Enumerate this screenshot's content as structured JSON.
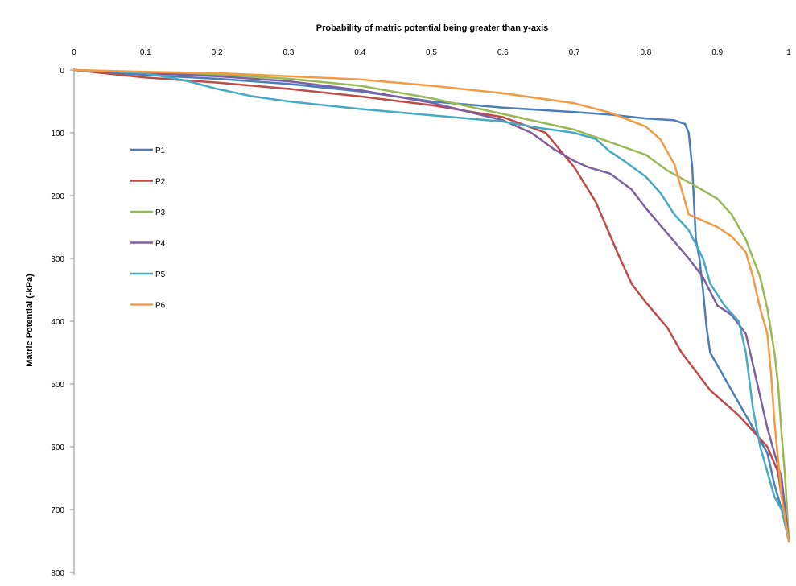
{
  "chart_data": {
    "type": "line",
    "title": "",
    "xlabel": "Probability of matric potential being greater than y-axis",
    "ylabel": "Matric Potential (-kPa)",
    "x_axis_position": "top",
    "y_axis_inverted": true,
    "xlim": [
      0,
      1
    ],
    "ylim": [
      0,
      800
    ],
    "x_ticks": [
      "0",
      "0.1",
      "0.2",
      "0.3",
      "0.4",
      "0.5",
      "0.6",
      "0.7",
      "0.8",
      "0.9",
      "1"
    ],
    "y_ticks": [
      "0",
      "100",
      "200",
      "300",
      "400",
      "500",
      "600",
      "700",
      "800"
    ],
    "grid": false,
    "legend_position": "left",
    "series": [
      {
        "name": "P1",
        "color": "#4a7ebb",
        "points": [
          [
            0,
            0
          ],
          [
            0.1,
            8
          ],
          [
            0.2,
            14
          ],
          [
            0.3,
            22
          ],
          [
            0.4,
            34
          ],
          [
            0.5,
            50
          ],
          [
            0.6,
            60
          ],
          [
            0.7,
            67
          ],
          [
            0.75,
            71
          ],
          [
            0.8,
            77
          ],
          [
            0.84,
            80
          ],
          [
            0.855,
            86
          ],
          [
            0.86,
            100
          ],
          [
            0.865,
            155
          ],
          [
            0.87,
            270
          ],
          [
            0.875,
            300
          ],
          [
            0.88,
            350
          ],
          [
            0.885,
            410
          ],
          [
            0.89,
            450
          ],
          [
            0.91,
            490
          ],
          [
            0.93,
            530
          ],
          [
            0.95,
            570
          ],
          [
            0.97,
            610
          ],
          [
            0.98,
            660
          ],
          [
            0.99,
            700
          ],
          [
            0.995,
            720
          ],
          [
            1,
            750
          ]
        ]
      },
      {
        "name": "P2",
        "color": "#be4b48",
        "points": [
          [
            0,
            0
          ],
          [
            0.1,
            12
          ],
          [
            0.2,
            20
          ],
          [
            0.3,
            30
          ],
          [
            0.4,
            42
          ],
          [
            0.5,
            56
          ],
          [
            0.6,
            75
          ],
          [
            0.66,
            100
          ],
          [
            0.7,
            155
          ],
          [
            0.73,
            210
          ],
          [
            0.76,
            290
          ],
          [
            0.78,
            340
          ],
          [
            0.8,
            370
          ],
          [
            0.83,
            410
          ],
          [
            0.85,
            450
          ],
          [
            0.87,
            480
          ],
          [
            0.89,
            510
          ],
          [
            0.91,
            530
          ],
          [
            0.93,
            550
          ],
          [
            0.95,
            575
          ],
          [
            0.97,
            600
          ],
          [
            0.985,
            640
          ],
          [
            0.99,
            680
          ],
          [
            0.995,
            700
          ],
          [
            1,
            750
          ]
        ]
      },
      {
        "name": "P3",
        "color": "#98b954",
        "points": [
          [
            0,
            0
          ],
          [
            0.1,
            4
          ],
          [
            0.2,
            7
          ],
          [
            0.3,
            14
          ],
          [
            0.4,
            25
          ],
          [
            0.5,
            45
          ],
          [
            0.6,
            70
          ],
          [
            0.7,
            95
          ],
          [
            0.75,
            115
          ],
          [
            0.8,
            135
          ],
          [
            0.83,
            160
          ],
          [
            0.87,
            185
          ],
          [
            0.9,
            205
          ],
          [
            0.92,
            230
          ],
          [
            0.94,
            270
          ],
          [
            0.96,
            330
          ],
          [
            0.97,
            380
          ],
          [
            0.98,
            450
          ],
          [
            0.985,
            500
          ],
          [
            0.99,
            580
          ],
          [
            0.995,
            650
          ],
          [
            1,
            750
          ]
        ]
      },
      {
        "name": "P4",
        "color": "#7d60a0",
        "points": [
          [
            0,
            0
          ],
          [
            0.1,
            5
          ],
          [
            0.2,
            10
          ],
          [
            0.3,
            18
          ],
          [
            0.4,
            32
          ],
          [
            0.5,
            52
          ],
          [
            0.6,
            80
          ],
          [
            0.64,
            100
          ],
          [
            0.67,
            125
          ],
          [
            0.7,
            145
          ],
          [
            0.72,
            155
          ],
          [
            0.75,
            165
          ],
          [
            0.78,
            190
          ],
          [
            0.8,
            220
          ],
          [
            0.83,
            260
          ],
          [
            0.86,
            300
          ],
          [
            0.88,
            330
          ],
          [
            0.9,
            375
          ],
          [
            0.92,
            390
          ],
          [
            0.94,
            420
          ],
          [
            0.95,
            470
          ],
          [
            0.96,
            520
          ],
          [
            0.97,
            570
          ],
          [
            0.98,
            610
          ],
          [
            0.99,
            650
          ],
          [
            1,
            750
          ]
        ]
      },
      {
        "name": "P5",
        "color": "#46aac5",
        "points": [
          [
            0,
            0
          ],
          [
            0.1,
            5
          ],
          [
            0.16,
            18
          ],
          [
            0.2,
            30
          ],
          [
            0.25,
            42
          ],
          [
            0.3,
            50
          ],
          [
            0.35,
            56
          ],
          [
            0.4,
            62
          ],
          [
            0.5,
            72
          ],
          [
            0.6,
            82
          ],
          [
            0.65,
            92
          ],
          [
            0.7,
            100
          ],
          [
            0.73,
            110
          ],
          [
            0.75,
            130
          ],
          [
            0.77,
            145
          ],
          [
            0.8,
            170
          ],
          [
            0.82,
            195
          ],
          [
            0.84,
            230
          ],
          [
            0.86,
            255
          ],
          [
            0.88,
            300
          ],
          [
            0.89,
            340
          ],
          [
            0.91,
            375
          ],
          [
            0.93,
            400
          ],
          [
            0.94,
            450
          ],
          [
            0.95,
            540
          ],
          [
            0.96,
            600
          ],
          [
            0.97,
            640
          ],
          [
            0.98,
            680
          ],
          [
            0.99,
            700
          ],
          [
            1,
            750
          ]
        ]
      },
      {
        "name": "P6",
        "color": "#f39b44",
        "points": [
          [
            0,
            0
          ],
          [
            0.1,
            3
          ],
          [
            0.2,
            5
          ],
          [
            0.3,
            10
          ],
          [
            0.4,
            15
          ],
          [
            0.5,
            25
          ],
          [
            0.6,
            37
          ],
          [
            0.7,
            53
          ],
          [
            0.75,
            68
          ],
          [
            0.8,
            90
          ],
          [
            0.82,
            110
          ],
          [
            0.84,
            150
          ],
          [
            0.85,
            190
          ],
          [
            0.86,
            230
          ],
          [
            0.88,
            240
          ],
          [
            0.9,
            250
          ],
          [
            0.92,
            265
          ],
          [
            0.94,
            290
          ],
          [
            0.95,
            330
          ],
          [
            0.96,
            380
          ],
          [
            0.97,
            420
          ],
          [
            0.975,
            480
          ],
          [
            0.98,
            560
          ],
          [
            0.985,
            620
          ],
          [
            0.99,
            680
          ],
          [
            1,
            750
          ]
        ]
      }
    ]
  }
}
